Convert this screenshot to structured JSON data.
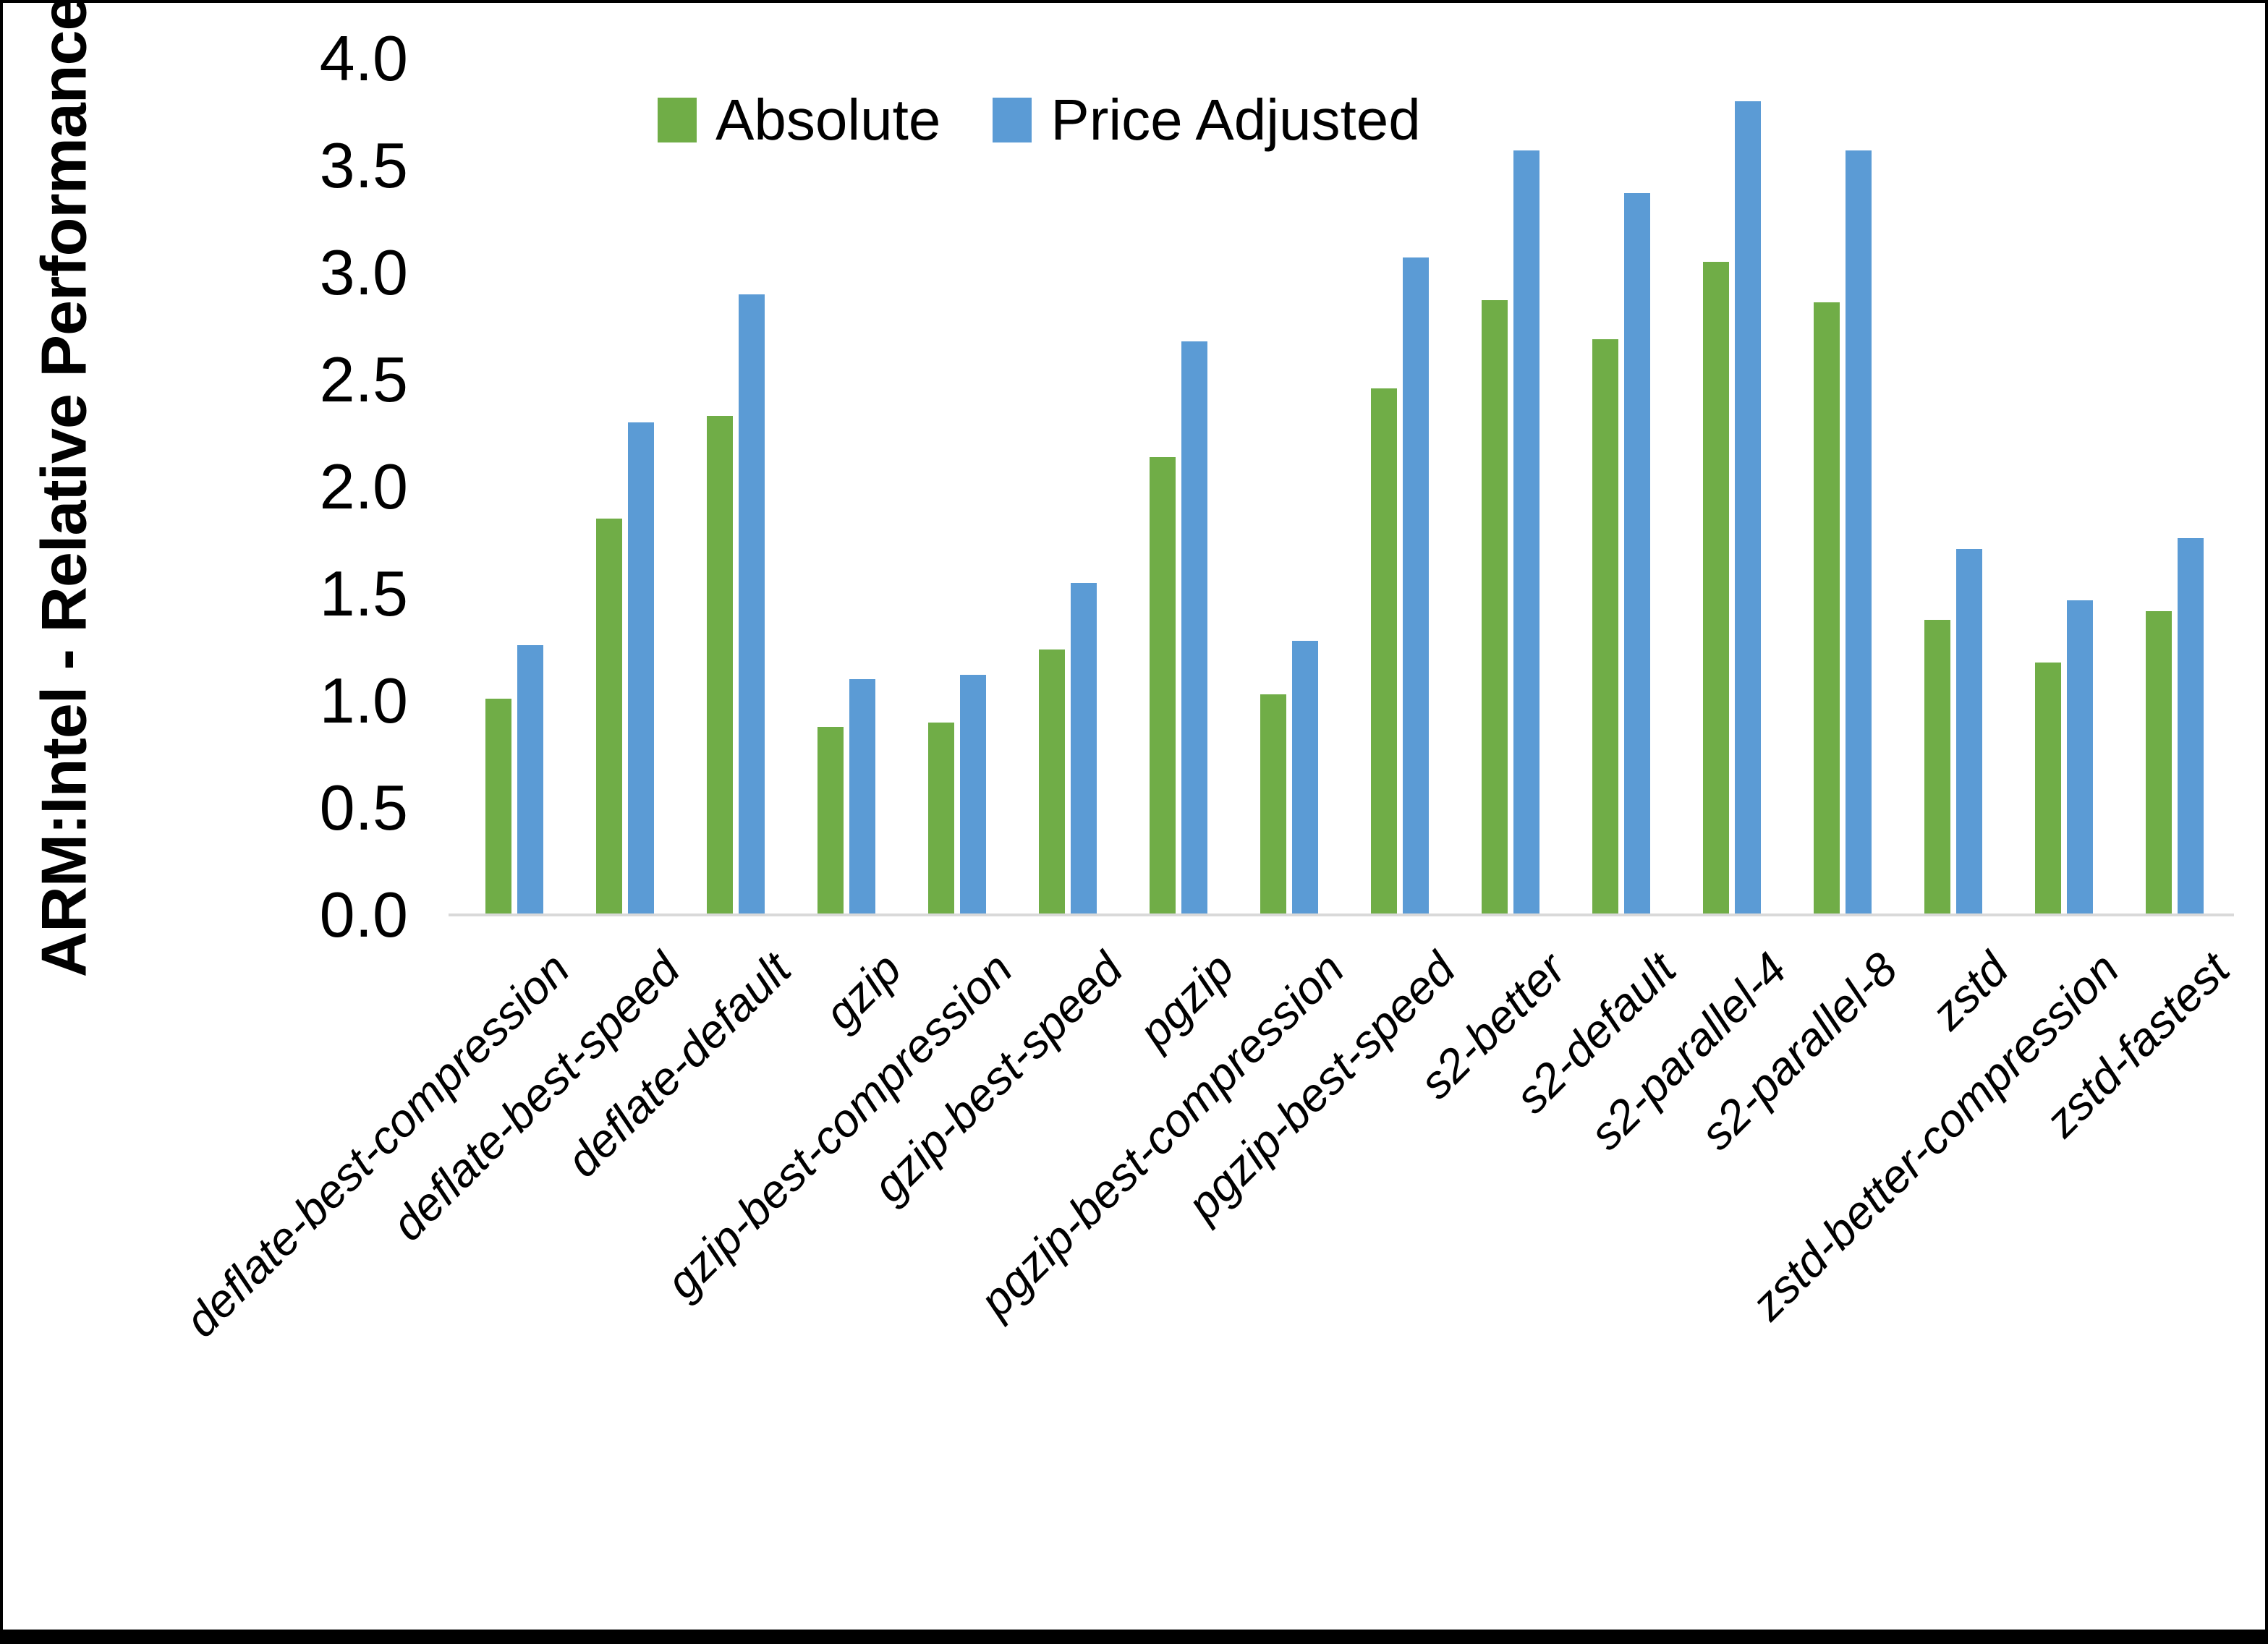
{
  "chart_data": {
    "type": "bar",
    "title": "",
    "xlabel": "",
    "ylabel": "ARM:Intel - Relative Performance",
    "ylim": [
      0.0,
      4.0
    ],
    "ytick_step": 0.5,
    "yticks": [
      "0.0",
      "0.5",
      "1.0",
      "1.5",
      "2.0",
      "2.5",
      "3.0",
      "3.5",
      "4.0"
    ],
    "grid": false,
    "legend_position": "top-center",
    "axis_line_color": "#d9d9d9",
    "categories": [
      "deflate-best-compression",
      "deflate-best-speed",
      "deflate-default",
      "gzip",
      "gzip-best-compression",
      "gzip-best-speed",
      "pgzip",
      "pgzip-best-compression",
      "pgzip-best-speed",
      "s2-better",
      "s2-default",
      "s2-parallel-4",
      "s2-parallel-8",
      "zstd",
      "zstd-better-compression",
      "zstd-fastest"
    ],
    "series": [
      {
        "name": "Absolute",
        "color": "#70AD47",
        "values": [
          1.01,
          1.85,
          2.33,
          0.88,
          0.9,
          1.24,
          2.14,
          1.03,
          2.46,
          2.87,
          2.69,
          3.05,
          2.86,
          1.38,
          1.18,
          1.42
        ]
      },
      {
        "name": "Price Adjusted",
        "color": "#5B9BD5",
        "values": [
          1.26,
          2.3,
          2.9,
          1.1,
          1.12,
          1.55,
          2.68,
          1.28,
          3.07,
          3.57,
          3.37,
          3.8,
          3.57,
          1.71,
          1.47,
          1.76
        ]
      }
    ]
  }
}
